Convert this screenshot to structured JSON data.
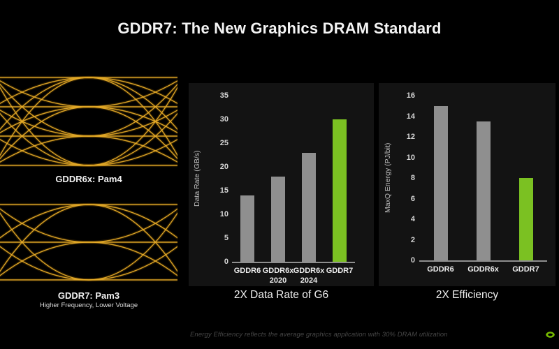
{
  "slide": {
    "title": "GDDR7: The New Graphics DRAM Standard",
    "footer_note": "Energy Efficiency reflects the average graphics application with 30% DRAM utilization"
  },
  "eye_diagrams": [
    {
      "label": "GDDR6x: Pam4",
      "sublabel": "",
      "levels": 4,
      "trace_color": "#e6ab28",
      "glow_color": "#7a5406"
    },
    {
      "label": "GDDR7: Pam3",
      "sublabel": "Higher Frequency, Lower Voltage",
      "levels": 3,
      "trace_color": "#e6ab28",
      "glow_color": "#7a5406"
    }
  ],
  "chart_data": [
    {
      "type": "bar",
      "title": "2X Data Rate of G6",
      "ylabel": "Data Rate (GB/s)",
      "categories": [
        "GDDR6",
        "GDDR6x\n2020",
        "GDDR6x\n2024",
        "GDDR7"
      ],
      "values": [
        14,
        18,
        23,
        30
      ],
      "ylim": [
        0,
        35
      ],
      "ytick_step": 5,
      "grid": false,
      "bar_color": "#8f8f8f",
      "highlight_index": 3,
      "highlight_color": "#7bc122"
    },
    {
      "type": "bar",
      "title": "2X Efficiency",
      "ylabel": "MaxQ Energy (PJ/bit)",
      "categories": [
        "GDDR6",
        "GDDR6x",
        "GDDR7"
      ],
      "values": [
        15,
        13.5,
        8
      ],
      "ylim": [
        0,
        16
      ],
      "ytick_step": 2,
      "grid": false,
      "bar_color": "#8f8f8f",
      "highlight_index": 2,
      "highlight_color": "#7bc122"
    }
  ],
  "logo": {
    "name": "nvidia-logo",
    "color": "#76b900"
  }
}
